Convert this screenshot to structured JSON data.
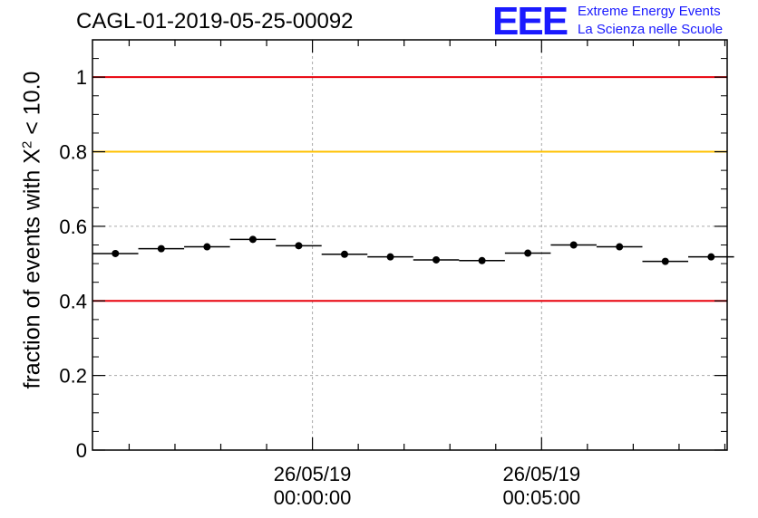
{
  "title": "CAGL-01-2019-05-25-00092",
  "logo": {
    "mark": "EEE",
    "line1": "Extreme Energy Events",
    "line2": "La Scienza nelle Scuole"
  },
  "chart_data": {
    "type": "scatter",
    "ylabel_prefix": "fraction of events with ",
    "ylabel_symbol": "X",
    "ylabel_sup": "2",
    "ylabel_suffix": " < 10.0",
    "ylim": [
      0,
      1.1
    ],
    "yticks": [
      0,
      0.2,
      0.4,
      0.6,
      0.8,
      1
    ],
    "ytick_labels": [
      "0",
      "0.2",
      "0.4",
      "0.6",
      "0.8",
      "1"
    ],
    "x_minutes_range": [
      -4.8,
      9.05
    ],
    "xticks": [
      {
        "minute": 0,
        "line1": "26/05/19",
        "line2": "00:00:00"
      },
      {
        "minute": 5,
        "line1": "26/05/19",
        "line2": "00:05:00"
      }
    ],
    "x_minor_step_minutes": 1,
    "bin_width_minutes": 1,
    "series": [
      {
        "bin_start_minutes": [
          -4.8,
          -3.8,
          -2.8,
          -1.8,
          -0.8,
          0.2,
          1.2,
          2.2,
          3.2,
          4.2,
          5.2,
          6.2,
          7.2,
          8.2
        ],
        "values": [
          0.527,
          0.54,
          0.545,
          0.565,
          0.548,
          0.525,
          0.518,
          0.51,
          0.508,
          0.528,
          0.55,
          0.545,
          0.506,
          0.518
        ]
      }
    ],
    "reference_lines": [
      {
        "y": 1.0,
        "color": "#e8000b"
      },
      {
        "y": 0.8,
        "color": "#ffc000"
      },
      {
        "y": 0.4,
        "color": "#e8000b"
      }
    ],
    "grid": true
  }
}
